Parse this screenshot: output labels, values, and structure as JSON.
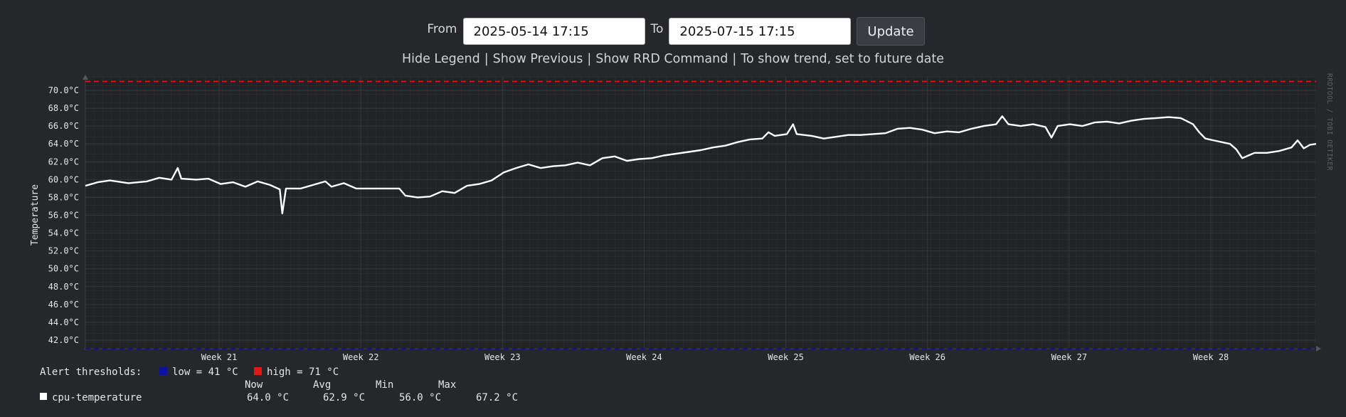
{
  "controls": {
    "from_label": "From",
    "from_value": "2025-05-14 17:15",
    "to_label": "To",
    "to_value": "2025-07-15 17:15",
    "update_label": "Update"
  },
  "links": {
    "hide_legend": "Hide Legend",
    "show_previous": "Show Previous",
    "show_rrd": "Show RRD Command",
    "trend_note": "To show trend, set to future date",
    "separator": "|"
  },
  "watermark": "RRDTOOL / TOBI OETIKER",
  "legend": {
    "alert_label": "Alert thresholds:",
    "low_label": "low = 41 °C",
    "high_label": "high = 71 °C",
    "low_color": "#0a12a0",
    "high_color": "#e01818",
    "headers": [
      "Now",
      "Avg",
      "Min",
      "Max"
    ],
    "series_name": "cpu-temperature",
    "stats": [
      "64.0 °C",
      "62.9 °C",
      "56.0 °C",
      "67.2 °C"
    ]
  },
  "chart_data": {
    "type": "line",
    "ylabel": "Temperature",
    "ylim": [
      41,
      72
    ],
    "y_ticks": [
      {
        "v": 42,
        "label": "42.0°C"
      },
      {
        "v": 44,
        "label": "44.0°C"
      },
      {
        "v": 46,
        "label": "46.0°C"
      },
      {
        "v": 48,
        "label": "48.0°C"
      },
      {
        "v": 50,
        "label": "50.0°C"
      },
      {
        "v": 52,
        "label": "52.0°C"
      },
      {
        "v": 54,
        "label": "54.0°C"
      },
      {
        "v": 56,
        "label": "56.0°C"
      },
      {
        "v": 58,
        "label": "58.0°C"
      },
      {
        "v": 60,
        "label": "60.0°C"
      },
      {
        "v": 62,
        "label": "62.0°C"
      },
      {
        "v": 64,
        "label": "64.0°C"
      },
      {
        "v": 66,
        "label": "66.0°C"
      },
      {
        "v": 68,
        "label": "68.0°C"
      },
      {
        "v": 70,
        "label": "70.0°C"
      }
    ],
    "x_ticks": [
      "Week 21",
      "Week 22",
      "Week 23",
      "Week 24",
      "Week 25",
      "Week 26",
      "Week 27",
      "Week 28"
    ],
    "thresholds": {
      "low": 41,
      "high": 71,
      "low_color": "#0a12a0",
      "high_color": "#e01818"
    },
    "series_color": "#ffffff",
    "series": [
      {
        "x": 0.0,
        "y": 59.3
      },
      {
        "x": 0.01,
        "y": 59.7
      },
      {
        "x": 0.02,
        "y": 59.9
      },
      {
        "x": 0.035,
        "y": 59.6
      },
      {
        "x": 0.05,
        "y": 59.8
      },
      {
        "x": 0.06,
        "y": 60.2
      },
      {
        "x": 0.07,
        "y": 60.0
      },
      {
        "x": 0.075,
        "y": 61.3
      },
      {
        "x": 0.078,
        "y": 60.1
      },
      {
        "x": 0.09,
        "y": 60.0
      },
      {
        "x": 0.1,
        "y": 60.1
      },
      {
        "x": 0.11,
        "y": 59.5
      },
      {
        "x": 0.12,
        "y": 59.7
      },
      {
        "x": 0.13,
        "y": 59.2
      },
      {
        "x": 0.14,
        "y": 59.8
      },
      {
        "x": 0.15,
        "y": 59.4
      },
      {
        "x": 0.158,
        "y": 58.9
      },
      {
        "x": 0.16,
        "y": 56.2
      },
      {
        "x": 0.163,
        "y": 59.0
      },
      {
        "x": 0.175,
        "y": 59.0
      },
      {
        "x": 0.185,
        "y": 59.4
      },
      {
        "x": 0.195,
        "y": 59.8
      },
      {
        "x": 0.2,
        "y": 59.2
      },
      {
        "x": 0.21,
        "y": 59.6
      },
      {
        "x": 0.22,
        "y": 59.0
      },
      {
        "x": 0.235,
        "y": 59.0
      },
      {
        "x": 0.245,
        "y": 59.0
      },
      {
        "x": 0.255,
        "y": 59.0
      },
      {
        "x": 0.26,
        "y": 58.2
      },
      {
        "x": 0.27,
        "y": 58.0
      },
      {
        "x": 0.28,
        "y": 58.1
      },
      {
        "x": 0.29,
        "y": 58.7
      },
      {
        "x": 0.3,
        "y": 58.5
      },
      {
        "x": 0.31,
        "y": 59.3
      },
      {
        "x": 0.32,
        "y": 59.5
      },
      {
        "x": 0.33,
        "y": 59.9
      },
      {
        "x": 0.34,
        "y": 60.8
      },
      {
        "x": 0.35,
        "y": 61.3
      },
      {
        "x": 0.36,
        "y": 61.7
      },
      {
        "x": 0.37,
        "y": 61.3
      },
      {
        "x": 0.38,
        "y": 61.5
      },
      {
        "x": 0.39,
        "y": 61.6
      },
      {
        "x": 0.4,
        "y": 61.9
      },
      {
        "x": 0.41,
        "y": 61.6
      },
      {
        "x": 0.42,
        "y": 62.4
      },
      {
        "x": 0.43,
        "y": 62.6
      },
      {
        "x": 0.44,
        "y": 62.1
      },
      {
        "x": 0.45,
        "y": 62.3
      },
      {
        "x": 0.46,
        "y": 62.4
      },
      {
        "x": 0.47,
        "y": 62.7
      },
      {
        "x": 0.48,
        "y": 62.9
      },
      {
        "x": 0.49,
        "y": 63.1
      },
      {
        "x": 0.5,
        "y": 63.3
      },
      {
        "x": 0.51,
        "y": 63.6
      },
      {
        "x": 0.52,
        "y": 63.8
      },
      {
        "x": 0.53,
        "y": 64.2
      },
      {
        "x": 0.54,
        "y": 64.5
      },
      {
        "x": 0.55,
        "y": 64.6
      },
      {
        "x": 0.555,
        "y": 65.3
      },
      {
        "x": 0.56,
        "y": 64.9
      },
      {
        "x": 0.57,
        "y": 65.1
      },
      {
        "x": 0.575,
        "y": 66.2
      },
      {
        "x": 0.578,
        "y": 65.1
      },
      {
        "x": 0.59,
        "y": 64.9
      },
      {
        "x": 0.6,
        "y": 64.6
      },
      {
        "x": 0.61,
        "y": 64.8
      },
      {
        "x": 0.62,
        "y": 65.0
      },
      {
        "x": 0.63,
        "y": 65.0
      },
      {
        "x": 0.64,
        "y": 65.1
      },
      {
        "x": 0.65,
        "y": 65.2
      },
      {
        "x": 0.66,
        "y": 65.7
      },
      {
        "x": 0.67,
        "y": 65.8
      },
      {
        "x": 0.68,
        "y": 65.6
      },
      {
        "x": 0.69,
        "y": 65.2
      },
      {
        "x": 0.7,
        "y": 65.4
      },
      {
        "x": 0.71,
        "y": 65.3
      },
      {
        "x": 0.72,
        "y": 65.7
      },
      {
        "x": 0.73,
        "y": 66.0
      },
      {
        "x": 0.74,
        "y": 66.2
      },
      {
        "x": 0.745,
        "y": 67.1
      },
      {
        "x": 0.75,
        "y": 66.2
      },
      {
        "x": 0.76,
        "y": 66.0
      },
      {
        "x": 0.77,
        "y": 66.2
      },
      {
        "x": 0.78,
        "y": 65.9
      },
      {
        "x": 0.785,
        "y": 64.7
      },
      {
        "x": 0.79,
        "y": 66.0
      },
      {
        "x": 0.8,
        "y": 66.2
      },
      {
        "x": 0.81,
        "y": 66.0
      },
      {
        "x": 0.82,
        "y": 66.4
      },
      {
        "x": 0.83,
        "y": 66.5
      },
      {
        "x": 0.84,
        "y": 66.3
      },
      {
        "x": 0.85,
        "y": 66.6
      },
      {
        "x": 0.86,
        "y": 66.8
      },
      {
        "x": 0.87,
        "y": 66.9
      },
      {
        "x": 0.88,
        "y": 67.0
      },
      {
        "x": 0.89,
        "y": 66.9
      },
      {
        "x": 0.9,
        "y": 66.2
      },
      {
        "x": 0.905,
        "y": 65.3
      },
      {
        "x": 0.91,
        "y": 64.6
      },
      {
        "x": 0.92,
        "y": 64.3
      },
      {
        "x": 0.93,
        "y": 64.0
      },
      {
        "x": 0.935,
        "y": 63.4
      },
      {
        "x": 0.94,
        "y": 62.4
      },
      {
        "x": 0.945,
        "y": 62.7
      },
      {
        "x": 0.95,
        "y": 63.0
      },
      {
        "x": 0.96,
        "y": 63.0
      },
      {
        "x": 0.97,
        "y": 63.2
      },
      {
        "x": 0.98,
        "y": 63.6
      },
      {
        "x": 0.985,
        "y": 64.4
      },
      {
        "x": 0.99,
        "y": 63.5
      },
      {
        "x": 0.995,
        "y": 63.9
      },
      {
        "x": 1.0,
        "y": 64.0
      }
    ]
  }
}
